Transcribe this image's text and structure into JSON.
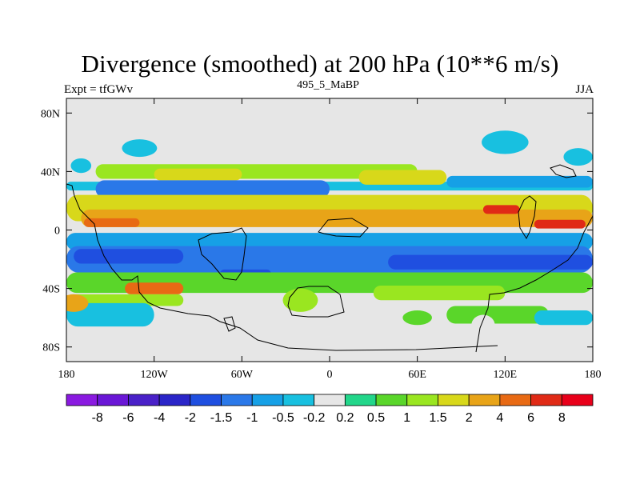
{
  "chart_data": {
    "type": "heatmap",
    "title": "Divergence (smoothed) at 200 hPa (10**6 m/s)",
    "left_label": "Expt = tfGWv",
    "center_label": "495_5_MaBP",
    "right_label": "JJA",
    "x_ticks": [
      "180",
      "120W",
      "60W",
      "0",
      "60E",
      "120E",
      "180"
    ],
    "x_tick_values": [
      -180,
      -120,
      -60,
      0,
      60,
      120,
      180
    ],
    "y_ticks": [
      "80N",
      "40N",
      "0",
      "40S",
      "80S"
    ],
    "y_tick_values": [
      80,
      40,
      0,
      -40,
      -80
    ],
    "xlim": [
      -180,
      180
    ],
    "ylim": [
      -90,
      90
    ],
    "levels": [
      "-8",
      "-6",
      "-4",
      "-2",
      "-1.5",
      "-1",
      "-0.5",
      "-0.2",
      "0.2",
      "0.5",
      "1",
      "1.5",
      "2",
      "4",
      "6",
      "8"
    ],
    "colors": [
      "#8a1ae0",
      "#6a17d6",
      "#4a21c8",
      "#2a25c8",
      "#1f4fe0",
      "#2a78e8",
      "#16a0e6",
      "#18c0e0",
      "#e6e6e6",
      "#22d68a",
      "#5ad62a",
      "#9ae620",
      "#d8d81a",
      "#e8a418",
      "#e86a14",
      "#e02a16",
      "#e8001a"
    ],
    "bands": [
      {
        "lat": 30,
        "width": 3,
        "lon0": -180,
        "lon1": 180,
        "value": -0.5
      },
      {
        "lat": 40,
        "width": 5,
        "lon0": -160,
        "lon1": 60,
        "value": 1.0
      },
      {
        "lat": 38,
        "width": 4,
        "lon0": -120,
        "lon1": -60,
        "value": 1.5
      },
      {
        "lat": 36,
        "width": 5,
        "lon0": 20,
        "lon1": 80,
        "value": 1.5
      },
      {
        "lat": 33,
        "width": 4,
        "lon0": 80,
        "lon1": 180,
        "value": -1.0
      },
      {
        "lat": 28,
        "width": 6,
        "lon0": -160,
        "lon1": 0,
        "value": -1.5
      },
      {
        "lat": 15,
        "width": 9,
        "lon0": -180,
        "lon1": 180,
        "value": 1.5
      },
      {
        "lat": 8,
        "width": 6,
        "lon0": -170,
        "lon1": 180,
        "value": 2.0
      },
      {
        "lat": 5,
        "width": 3,
        "lon0": -168,
        "lon1": -130,
        "value": 4.0
      },
      {
        "lat": 10,
        "width": 4,
        "lon0": -60,
        "lon1": 60,
        "value": 3.0
      },
      {
        "lat": 14,
        "width": 3,
        "lon0": 105,
        "lon1": 130,
        "value": 6.0
      },
      {
        "lat": 4,
        "width": 3,
        "lon0": 140,
        "lon1": 175,
        "value": 6.0
      },
      {
        "lat": -8,
        "width": 6,
        "lon0": -180,
        "lon1": 180,
        "value": -1.0
      },
      {
        "lat": -20,
        "width": 9,
        "lon0": -180,
        "lon1": 180,
        "value": -1.5
      },
      {
        "lat": -18,
        "width": 5,
        "lon0": -175,
        "lon1": -100,
        "value": -2.0
      },
      {
        "lat": -22,
        "width": 5,
        "lon0": 40,
        "lon1": 180,
        "value": -2.0
      },
      {
        "lat": -30,
        "width": 3,
        "lon0": -75,
        "lon1": -40,
        "value": -2.0
      },
      {
        "lat": -36,
        "width": 7,
        "lon0": -180,
        "lon1": 180,
        "value": 0.5
      },
      {
        "lat": -40,
        "width": 4,
        "lon0": -140,
        "lon1": -100,
        "value": 4.0
      },
      {
        "lat": -43,
        "width": 5,
        "lon0": 30,
        "lon1": 120,
        "value": 1.0
      },
      {
        "lat": -48,
        "width": 4,
        "lon0": -180,
        "lon1": -100,
        "value": 1.0
      },
      {
        "lat": -58,
        "width": 8,
        "lon0": -180,
        "lon1": -120,
        "value": -0.5
      },
      {
        "lat": -58,
        "width": 6,
        "lon0": 80,
        "lon1": 150,
        "value": 0.5
      },
      {
        "lat": -60,
        "width": 5,
        "lon0": 140,
        "lon1": 180,
        "value": -0.5
      }
    ],
    "blobs": [
      {
        "lon": -130,
        "lat": 56,
        "rx": 12,
        "ry": 6,
        "value": -0.5
      },
      {
        "lon": 120,
        "lat": 60,
        "rx": 16,
        "ry": 8,
        "value": -0.5
      },
      {
        "lon": 170,
        "lat": 50,
        "rx": 10,
        "ry": 6,
        "value": -0.5
      },
      {
        "lon": -170,
        "lat": 44,
        "rx": 7,
        "ry": 5,
        "value": -0.5
      },
      {
        "lon": 60,
        "lat": -60,
        "rx": 10,
        "ry": 5,
        "value": 0.5
      },
      {
        "lon": -20,
        "lat": -48,
        "rx": 12,
        "ry": 8,
        "value": 1.0
      },
      {
        "lon": 105,
        "lat": -65,
        "rx": 8,
        "ry": 7,
        "value": -0.2
      },
      {
        "lon": -175,
        "lat": -50,
        "rx": 10,
        "ry": 6,
        "value": 2.0
      }
    ]
  },
  "colorbar_labels": [
    "-8",
    "-6",
    "-4",
    "-2",
    "-1.5",
    "-1",
    "-0.5",
    "-0.2",
    "0.2",
    "0.5",
    "1",
    "1.5",
    "2",
    "4",
    "6",
    "8"
  ]
}
